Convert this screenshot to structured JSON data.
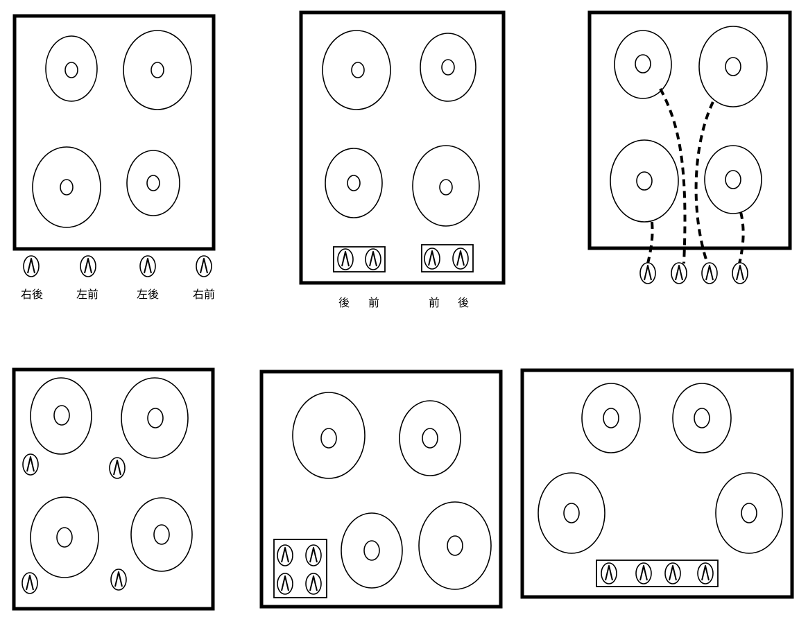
{
  "diagram_1": {
    "knob_labels": [
      "右後",
      "左前",
      "左後",
      "右前"
    ]
  },
  "diagram_2": {
    "left_group_labels": [
      "後",
      "前"
    ],
    "right_group_labels": [
      "前",
      "後"
    ]
  },
  "icons": {
    "burner": "burner-ring-icon",
    "knob": "control-knob-icon"
  },
  "colors": {
    "ink": "#000000",
    "paper": "#ffffff"
  }
}
